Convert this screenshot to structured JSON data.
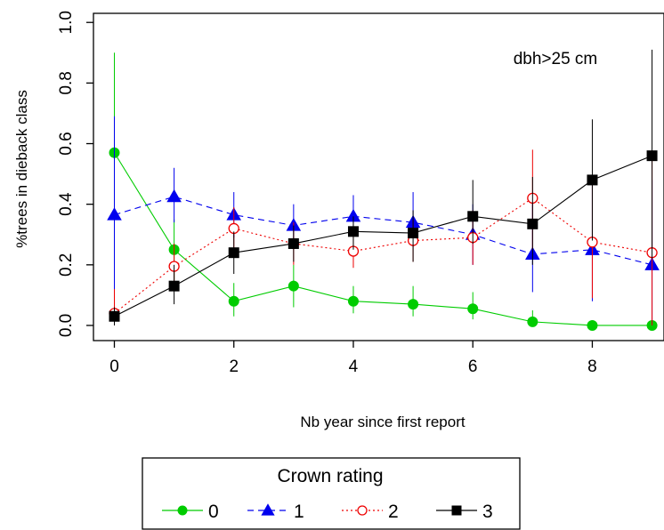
{
  "chart_data": {
    "type": "line",
    "title": "",
    "xlabel": "Nb year since first report",
    "ylabel": "%trees in dieback class",
    "annotation": "dbh>25 cm",
    "xlim": [
      -0.35,
      9.2
    ],
    "ylim": [
      -0.05,
      1.03
    ],
    "xticks": [
      0,
      2,
      4,
      6,
      8
    ],
    "xtick_labels": [
      "0",
      "2",
      "4",
      "6",
      "8"
    ],
    "yticks": [
      0.0,
      0.2,
      0.4,
      0.6,
      0.8,
      1.0
    ],
    "ytick_labels": [
      "0.0",
      "0.2",
      "0.4",
      "0.6",
      "0.8",
      "1.0"
    ],
    "grid": false,
    "legend": {
      "title": "Crown rating",
      "placement": "bottom-center"
    },
    "series": [
      {
        "name": "0",
        "color": "#00cc00",
        "line_style": "solid",
        "marker": "filled-circle",
        "x": [
          0,
          1,
          2,
          3,
          4,
          5,
          6,
          7,
          8,
          9
        ],
        "y": [
          0.57,
          0.25,
          0.08,
          0.13,
          0.08,
          0.07,
          0.055,
          0.012,
          0.0,
          0.0
        ],
        "y_low": [
          0.2,
          0.15,
          0.03,
          0.06,
          0.04,
          0.03,
          0.02,
          0.0,
          0.0,
          0.0
        ],
        "y_high": [
          0.9,
          0.35,
          0.14,
          0.2,
          0.13,
          0.13,
          0.11,
          0.05,
          0.0,
          0.0
        ]
      },
      {
        "name": "1",
        "color": "#0000ee",
        "line_style": "dashed",
        "marker": "filled-triangle",
        "x": [
          0,
          1,
          2,
          3,
          4,
          5,
          6,
          7,
          8,
          9
        ],
        "y": [
          0.365,
          0.425,
          0.365,
          0.33,
          0.36,
          0.34,
          0.3,
          0.235,
          0.25,
          0.2
        ],
        "y_low": [
          0.08,
          0.34,
          0.29,
          0.27,
          0.3,
          0.26,
          0.2,
          0.11,
          0.08,
          0.0
        ],
        "y_high": [
          0.69,
          0.52,
          0.44,
          0.4,
          0.43,
          0.44,
          0.4,
          0.43,
          0.49,
          0.48
        ]
      },
      {
        "name": "2",
        "color": "#ee0000",
        "line_style": "dotted",
        "marker": "open-circle",
        "x": [
          0,
          1,
          2,
          3,
          4,
          5,
          6,
          7,
          8,
          9
        ],
        "y": [
          0.04,
          0.195,
          0.32,
          0.27,
          0.245,
          0.28,
          0.29,
          0.42,
          0.275,
          0.24
        ],
        "y_low": [
          0.0,
          0.13,
          0.25,
          0.2,
          0.19,
          0.21,
          0.2,
          0.25,
          0.09,
          0.0
        ],
        "y_high": [
          0.12,
          0.27,
          0.39,
          0.34,
          0.3,
          0.35,
          0.38,
          0.58,
          0.47,
          0.56
        ]
      },
      {
        "name": "3",
        "color": "#000000",
        "line_style": "solid",
        "marker": "filled-square",
        "x": [
          0,
          1,
          2,
          3,
          4,
          5,
          6,
          7,
          8,
          9
        ],
        "y": [
          0.03,
          0.13,
          0.24,
          0.27,
          0.31,
          0.305,
          0.36,
          0.335,
          0.48,
          0.56
        ],
        "y_low": [
          0.0,
          0.07,
          0.17,
          0.21,
          0.25,
          0.21,
          0.27,
          0.2,
          0.28,
          0.22
        ],
        "y_high": [
          0.06,
          0.2,
          0.31,
          0.33,
          0.36,
          0.38,
          0.48,
          0.49,
          0.68,
          0.91
        ]
      }
    ]
  }
}
